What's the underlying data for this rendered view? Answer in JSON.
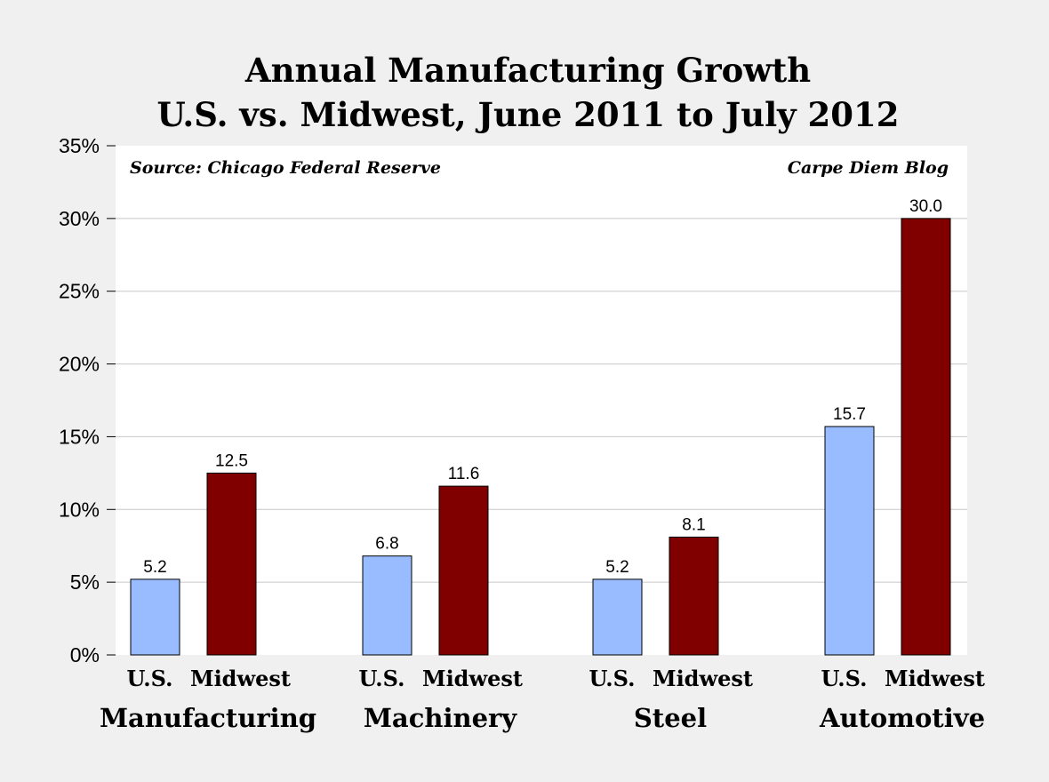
{
  "chart_data": {
    "type": "bar",
    "title": "Annual Manufacturing Growth",
    "subtitle": "U.S. vs. Midwest, June 2011 to July 2012",
    "source_note": "Source: Chicago Federal Reserve",
    "credit_note": "Carpe Diem Blog",
    "categories": [
      "Manufacturing",
      "Machinery",
      "Steel",
      "Automotive"
    ],
    "series": [
      {
        "name": "U.S.",
        "color": "#99bbff",
        "values": [
          5.2,
          6.8,
          5.2,
          15.7
        ],
        "labels": [
          "5.2",
          "6.8",
          "5.2",
          "15.7"
        ]
      },
      {
        "name": "Midwest",
        "color": "#800000",
        "values": [
          12.5,
          11.6,
          8.1,
          30.0
        ],
        "labels": [
          "12.5",
          "11.6",
          "8.1",
          "30.0"
        ]
      }
    ],
    "ylim": [
      0,
      35
    ],
    "yticks": [
      0,
      5,
      10,
      15,
      20,
      25,
      30,
      35
    ],
    "ytick_labels": [
      "0%",
      "5%",
      "10%",
      "15%",
      "20%",
      "25%",
      "30%",
      "35%"
    ],
    "grid": true,
    "legend": "none"
  }
}
